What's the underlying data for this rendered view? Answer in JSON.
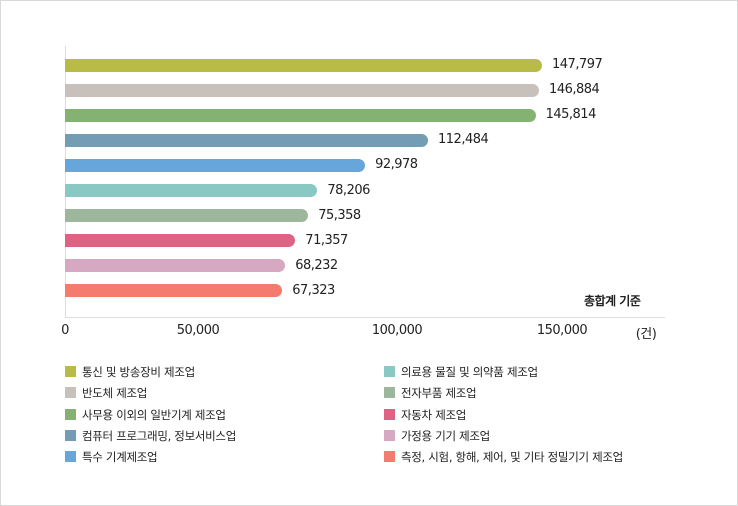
{
  "chart_data": {
    "type": "bar",
    "orientation": "horizontal",
    "categories": [
      "통신 및 방송장비 제조업",
      "반도체 제조업",
      "사무용 이외의 일반기계 제조업",
      "컴퓨터 프로그래밍, 정보서비스업",
      "특수 기계제조업",
      "의료용 물질 및 의약품 제조업",
      "전자부품 제조업",
      "자동차 제조업",
      "가정용 기기 제조업",
      "측정, 시험, 항해, 제어, 및 기타 정밀기기 제조업"
    ],
    "values": [
      147797,
      146884,
      145814,
      112484,
      92978,
      78206,
      75358,
      71357,
      68232,
      67323
    ],
    "value_labels": [
      "147,797",
      "146,884",
      "145,814",
      "112,484",
      "92,978",
      "78,206",
      "75,358",
      "71,357",
      "68,232",
      "67,323"
    ],
    "colors": [
      "#b8bb46",
      "#c8c0bb",
      "#84b272",
      "#729db5",
      "#67a6da",
      "#8ac9c3",
      "#9cb79c",
      "#de6284",
      "#d7a8c1",
      "#f47b6e"
    ],
    "xticks": [
      "0",
      "50,000",
      "100,000",
      "150,000"
    ],
    "unit": "(건)",
    "annotation": "총합계 기준",
    "xlim": [
      0,
      150000
    ],
    "grid": false,
    "legend_placement": "bottom"
  }
}
